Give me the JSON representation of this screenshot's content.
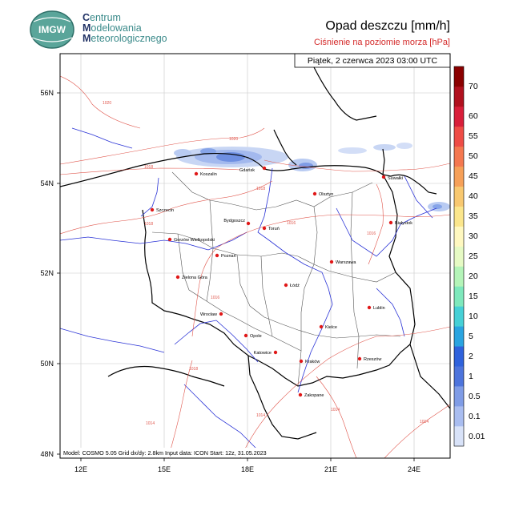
{
  "header": {
    "logo_text": "IMGW",
    "org_lines": [
      {
        "cap": "C",
        "rest": "entrum"
      },
      {
        "cap": "M",
        "rest": "odelowania"
      },
      {
        "cap": "M",
        "rest": "eteorologicznego"
      }
    ],
    "title": "Opad deszczu [mm/h]",
    "subtitle": "Ciśnienie na poziomie morza [hPa]"
  },
  "map": {
    "datetime": "Piątek, 2 czerwca 2023 03:00 UTC",
    "model_info": "Model: COSMO 5.05  Grid dx/dy: 2.8km  Input data: ICON  Start: 12z, 31.05.2023",
    "lon_labels": [
      "12E",
      "15E",
      "18E",
      "21E",
      "24E"
    ],
    "lat_labels": [
      "56N",
      "54N",
      "52N",
      "50N",
      "48N"
    ],
    "cities": [
      {
        "name": "Gdańsk"
      },
      {
        "name": "Koszalin"
      },
      {
        "name": "Suwałki"
      },
      {
        "name": "Olsztyn"
      },
      {
        "name": "Szczecin"
      },
      {
        "name": "Bydgoszcz"
      },
      {
        "name": "Toruń"
      },
      {
        "name": "Białystok"
      },
      {
        "name": "Gorzów Wielkopolski"
      },
      {
        "name": "Poznań"
      },
      {
        "name": "Warszawa"
      },
      {
        "name": "Zielona Góra"
      },
      {
        "name": "Łódź"
      },
      {
        "name": "Lublin"
      },
      {
        "name": "Wrocław"
      },
      {
        "name": "Opole"
      },
      {
        "name": "Kielce"
      },
      {
        "name": "Katowice"
      },
      {
        "name": "Kraków"
      },
      {
        "name": "Rzeszów"
      },
      {
        "name": "Zakopane"
      }
    ],
    "isobar_labels": [
      "1020",
      "1020",
      "1018",
      "1018",
      "1018",
      "1016",
      "1016",
      "1016",
      "1018",
      "1014",
      "1014",
      "1014",
      "1014"
    ]
  },
  "colorbar": {
    "labels": [
      "0.01",
      "0.1",
      "0.5",
      "1",
      "2",
      "5",
      "10",
      "15",
      "20",
      "25",
      "30",
      "35",
      "40",
      "45",
      "50",
      "55",
      "60",
      "70"
    ],
    "colors": [
      "#d8e2f8",
      "#a9bdf0",
      "#7f9ce6",
      "#4d74dc",
      "#2f62dc",
      "#2aa4e0",
      "#46d0d6",
      "#7ee8bc",
      "#b4f4b8",
      "#e6fac4",
      "#fff8c0",
      "#fbe68c",
      "#f8c870",
      "#f6a058",
      "#f47850",
      "#ee4c46",
      "#d81e3a",
      "#b0101e",
      "#8a0000"
    ]
  }
}
